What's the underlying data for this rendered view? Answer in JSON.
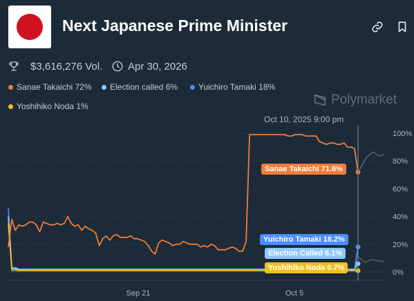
{
  "header": {
    "title": "Next Japanese Prime Minister",
    "volume": "$3,616,276 Vol.",
    "end_date": "Apr 30, 2026"
  },
  "brand": {
    "name": "Polymarket"
  },
  "legend": [
    {
      "label": "Sanae Takaichi 72%",
      "color": "#f07d3a"
    },
    {
      "label": "Election called 6%",
      "color": "#8ec9ff"
    },
    {
      "label": "Yuichiro Tamaki 18%",
      "color": "#4a8dff"
    },
    {
      "label": "Yoshihiko Noda 1%",
      "color": "#f2c01a"
    }
  ],
  "hover": {
    "date": "Oct 10, 2025 9:00 pm",
    "tags": [
      {
        "label": "Sanae Takaichi 71.6%",
        "color": "#f07d3a",
        "text_color": "#ffffff"
      },
      {
        "label": "Yuichiro Tamaki 18.2%",
        "color": "#4a8dff",
        "text_color": "#ffffff"
      },
      {
        "label": "Election Called 6.1%",
        "color": "#8ec9ff",
        "text_color": "#ffffff"
      },
      {
        "label": "Yoshihiko Noda 0.7%",
        "color": "#f2c01a",
        "text_color": "#ffffff"
      }
    ]
  },
  "chart_data": {
    "type": "line",
    "x_ticks": [
      "Sep 21",
      "Oct 5"
    ],
    "y_ticks": [
      "100%",
      "80%",
      "60%",
      "40%",
      "20%",
      "0%"
    ],
    "ylim": [
      0,
      100
    ],
    "series": [
      {
        "name": "Sanae Takaichi",
        "color": "#f07d3a",
        "values": [
          18,
          38,
          30,
          34,
          33,
          34,
          36,
          36,
          34,
          29,
          36,
          35,
          34,
          34,
          35,
          34,
          35,
          40,
          35,
          33,
          34,
          30,
          33,
          31,
          30,
          28,
          19,
          24,
          26,
          23,
          26,
          27,
          25,
          25,
          25,
          26,
          24,
          24,
          23,
          22,
          19,
          15,
          13,
          21,
          23,
          22,
          21,
          19,
          20,
          20,
          22,
          21,
          20,
          20,
          20,
          18,
          19,
          18,
          20,
          19,
          16,
          16,
          16,
          17,
          18,
          17,
          15,
          15,
          22,
          99,
          99,
          99,
          99,
          99,
          99,
          99,
          99,
          99,
          99,
          99,
          98,
          98,
          99,
          99,
          99,
          98,
          98,
          98,
          98,
          94,
          93,
          92,
          93,
          93,
          92,
          92,
          93,
          90,
          90,
          89,
          72
        ]
      },
      {
        "name": "Yuichiro Tamaki",
        "color": "#4a8dff",
        "values": [
          46,
          1,
          1,
          1,
          1,
          1,
          1,
          1,
          1,
          1,
          1,
          1,
          1,
          1,
          1,
          1,
          1,
          1,
          1,
          1,
          1,
          1,
          1,
          1,
          1,
          1,
          1,
          1,
          1,
          1,
          1,
          1,
          1,
          1,
          1,
          1,
          1,
          1,
          1,
          1,
          1,
          1,
          1,
          1,
          1,
          1,
          1,
          1,
          1,
          1,
          1,
          1,
          1,
          1,
          1,
          1,
          1,
          1,
          1,
          1,
          1,
          1,
          1,
          1,
          1,
          1,
          1,
          1,
          1,
          1,
          1,
          1,
          1,
          1,
          1,
          1,
          1,
          1,
          1,
          1,
          1,
          1,
          1,
          1,
          1,
          1,
          1,
          1,
          1,
          1,
          1,
          1,
          1,
          1,
          1,
          1,
          1,
          1,
          1,
          1,
          18
        ]
      },
      {
        "name": "Election called",
        "color": "#8ec9ff",
        "values": [
          40,
          3,
          3,
          2,
          2,
          2,
          2,
          2,
          2,
          2,
          2,
          2,
          2,
          2,
          2,
          2,
          2,
          2,
          2,
          2,
          2,
          2,
          2,
          2,
          2,
          2,
          2,
          2,
          2,
          2,
          2,
          2,
          2,
          2,
          2,
          2,
          2,
          2,
          2,
          2,
          2,
          2,
          2,
          2,
          2,
          2,
          2,
          2,
          2,
          2,
          2,
          2,
          2,
          2,
          2,
          2,
          2,
          2,
          2,
          2,
          2,
          2,
          2,
          2,
          2,
          2,
          2,
          2,
          2,
          2,
          2,
          2,
          2,
          2,
          2,
          2,
          2,
          2,
          2,
          2,
          2,
          2,
          2,
          2,
          2,
          2,
          2,
          2,
          2,
          2,
          2,
          2,
          2,
          2,
          2,
          2,
          2,
          2,
          2,
          2,
          6
        ]
      },
      {
        "name": "Yoshihiko Noda",
        "color": "#f2c01a",
        "values": [
          35,
          2,
          2,
          1,
          1,
          1,
          1,
          1,
          1,
          1,
          1,
          1,
          1,
          1,
          1,
          1,
          1,
          1,
          1,
          1,
          1,
          1,
          1,
          1,
          1,
          1,
          1,
          1,
          1,
          1,
          1,
          1,
          1,
          1,
          1,
          1,
          1,
          1,
          1,
          1,
          1,
          1,
          1,
          1,
          1,
          1,
          1,
          1,
          1,
          1,
          1,
          1,
          1,
          1,
          1,
          1,
          1,
          1,
          1,
          1,
          1,
          1,
          1,
          1,
          1,
          1,
          1,
          1,
          1,
          1,
          1,
          1,
          1,
          1,
          1,
          1,
          1,
          1,
          1,
          1,
          1,
          1,
          1,
          1,
          1,
          1,
          1,
          1,
          1,
          1,
          1,
          1,
          1,
          1,
          1,
          1,
          1,
          1,
          1,
          1,
          1
        ]
      }
    ]
  }
}
